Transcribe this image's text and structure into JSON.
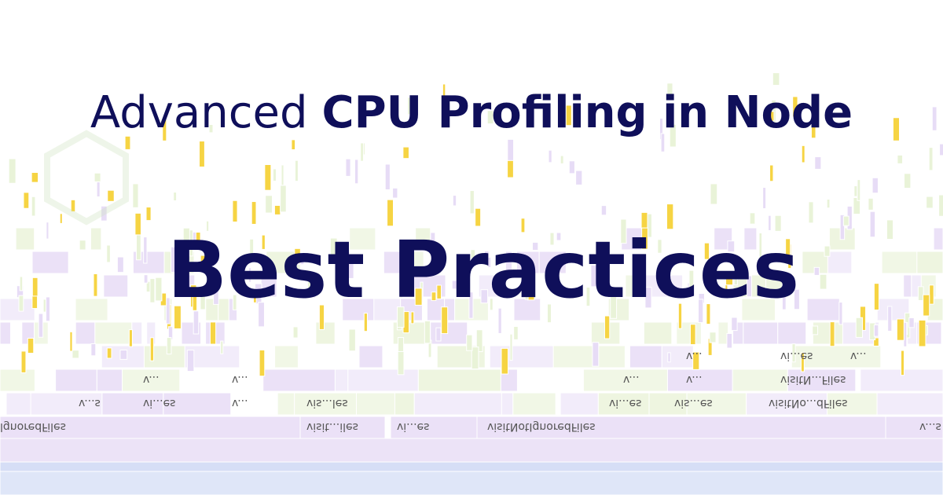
{
  "header": {
    "title_light": "Advanced",
    "title_bold": "CPU Profiling in Node",
    "subtitle": "Best Practices"
  },
  "flame_graph": {
    "labels": [
      "lgnoredFiles",
      "visit...iles",
      "vi...es",
      "visitNotIgnoredFiles",
      "v...s",
      "v...s",
      "vi...es",
      "v...",
      "vis...les",
      "vi...es",
      "vis...es",
      "visitNo...dFiles",
      "v...",
      "v...",
      "v...",
      "v...",
      "visitN...Files",
      "v...",
      "vi...es",
      "v..."
    ]
  }
}
